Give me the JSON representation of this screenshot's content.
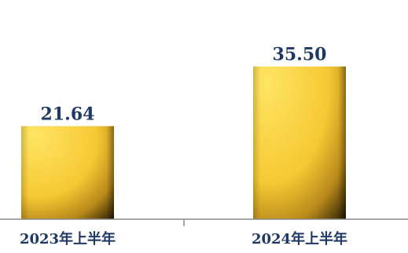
{
  "chart_data": {
    "type": "bar",
    "categories": [
      "2023年上半年",
      "2024年上半年"
    ],
    "values": [
      21.64,
      35.5
    ],
    "value_labels": [
      "21.64",
      "35.50"
    ],
    "ylim": [
      0,
      40
    ],
    "grid": false,
    "colors": {
      "bar_light": "#ffd84a",
      "bar_mid": "#f3c233",
      "bar_dark": "#3a2c06",
      "text": "#1f3864",
      "axis": "#8a8a8a"
    }
  }
}
